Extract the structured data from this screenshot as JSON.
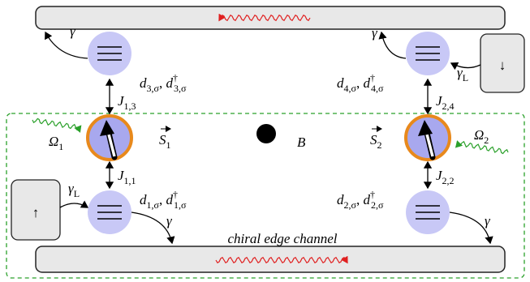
{
  "edge_channel_label": "chiral edge channel",
  "field_label": "B",
  "reservoirs": [
    {
      "arrow": "↓"
    },
    {
      "arrow": "↑"
    }
  ],
  "gamma_labels": [
    "γ",
    "γ",
    "γ",
    "γ"
  ],
  "lead_gammas": [
    {
      "base": "γ",
      "sub": "L"
    },
    {
      "base": "γ",
      "sub": "L"
    }
  ],
  "spins": [
    {
      "base": "S",
      "sub": "1"
    },
    {
      "base": "S",
      "sub": "2"
    }
  ],
  "drives": [
    {
      "base": "Ω",
      "sub": "1"
    },
    {
      "base": "Ω",
      "sub": "2"
    }
  ],
  "couplings": [
    {
      "base": "J",
      "sub": "1,3"
    },
    {
      "base": "J",
      "sub": "2,4"
    },
    {
      "base": "J",
      "sub": "1,1"
    },
    {
      "base": "J",
      "sub": "2,2"
    }
  ],
  "dots": [
    {
      "base": "d",
      "sub": "3,σ",
      "sep": ", ",
      "base2": "d",
      "sup2": "†",
      "sub2": "3,σ"
    },
    {
      "base": "d",
      "sub": "4,σ",
      "sep": ", ",
      "base2": "d",
      "sup2": "†",
      "sub2": "4,σ"
    },
    {
      "base": "d",
      "sub": "1,σ",
      "sep": ", ",
      "base2": "d",
      "sup2": "†",
      "sub2": "1,σ"
    },
    {
      "base": "d",
      "sub": "2,σ",
      "sep": ", ",
      "base2": "d",
      "sup2": "†",
      "sub2": "2,σ"
    }
  ]
}
